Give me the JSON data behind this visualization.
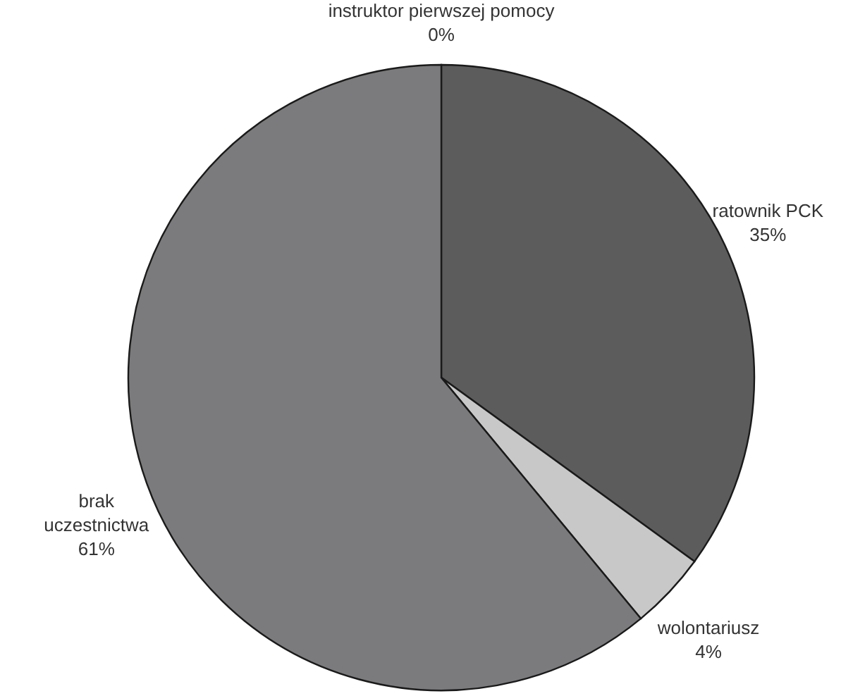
{
  "chart_data": {
    "type": "pie",
    "categories": [
      "instruktor pierwszej pomocy",
      "ratownik PCK",
      "wolontariusz",
      "brak uczestnictwa"
    ],
    "values": [
      0,
      35,
      4,
      61
    ],
    "value_labels": [
      "0%",
      "35%",
      "4%",
      "61%"
    ],
    "colors": [
      "#8a8a8a",
      "#5c5c5c",
      "#c8c8c8",
      "#7b7b7d"
    ]
  }
}
